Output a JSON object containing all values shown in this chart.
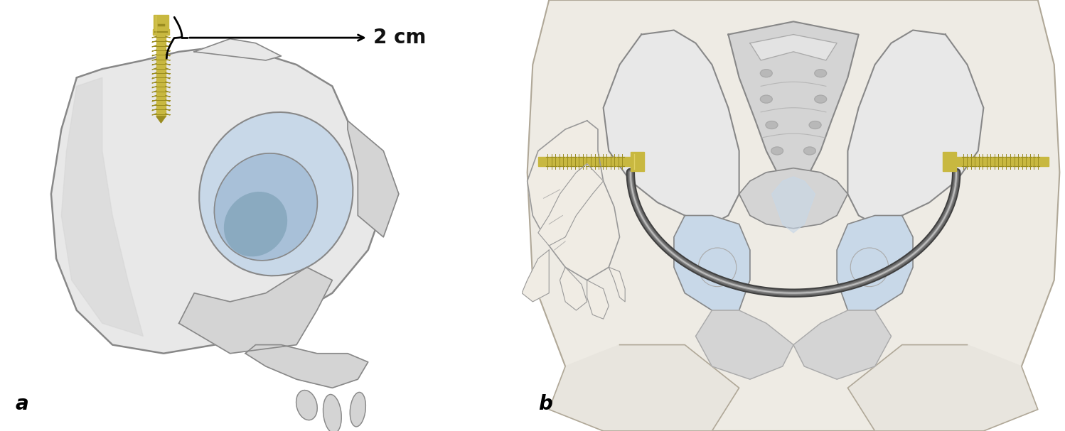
{
  "background_color": "#ffffff",
  "label_a": "a",
  "label_b": "b",
  "annotation_text": "2 cm",
  "label_fontsize": 20,
  "annotation_fontsize": 20,
  "fig_width": 14.98,
  "fig_height": 6.07,
  "bone_color_light": "#e8e8e8",
  "bone_color_mid": "#d4d4d4",
  "bone_color_dark": "#c0c0c0",
  "bone_outline": "#888888",
  "bone_outline_thin": "#aaaaaa",
  "blue_light": "#c8d8e8",
  "blue_mid": "#a8c0d8",
  "blue_dark": "#8aaac0",
  "screw_gold": "#c8b840",
  "screw_dark_gold": "#9a8c20",
  "screw_highlight": "#e0d060",
  "rod_dark": "#404040",
  "rod_mid": "#686868",
  "rod_light": "#909090",
  "skin_color": "#eeebe4",
  "skin_outline": "#aaaaaa",
  "hand_fill": "#f0ece4",
  "hand_outline": "#999999",
  "text_color": "#111111",
  "arrow_color": "#111111"
}
